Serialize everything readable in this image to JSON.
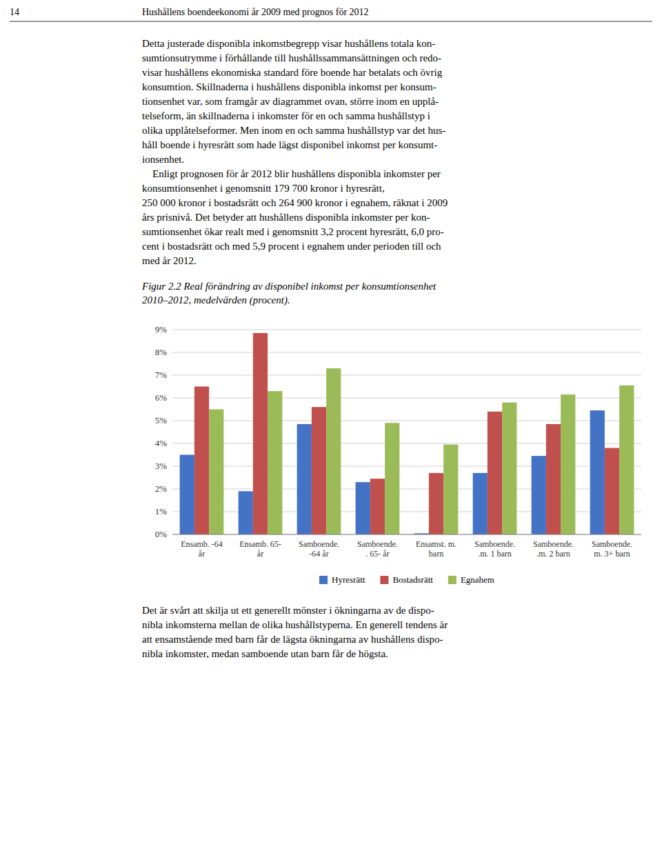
{
  "page_number": "14",
  "header_text": "Hushållens boendeekonomi år 2009 med prognos för 2012",
  "paragraphs": [
    "Detta justerade disponibla inkomstbegrepp visar hushållens totala kon-\nsumtionsutrymme i förhållande till hushållssammansättningen och redo-\nvisar hushållens ekonomiska standard före boende har betalats och övrig\nkonsumtion. Skillnaderna i hushållens disponibla inkomst per konsum-\ntionsenhet var, som framgår av diagrammet ovan, större inom en upplå-\ntelseform, än skillnaderna i inkomster för en och samma hushållstyp i\nolika upplåtelseformer. Men inom en och samma hushållstyp var det hus-\nhåll boende i hyresrätt som hade lägst disponibel inkomst per konsumt-\nionsenhet.\n    Enligt prognosen för år 2012 blir hushållens disponibla inkomster per\nkonsumtionsenhet i genomsnitt 179 700 kronor i hyresrätt,\n250 000 kronor i bostadsrätt och 264 900 kronor i egnahem, räknat i 2009\nårs prisnivå. Det betyder att hushållens disponibla inkomster per kon-\nsumtionsenhet ökar realt med i genomsnitt 3,2 procent hyresrätt, 6,0 pro-\ncent i bostadsrätt och med 5,9 procent i egnahem under perioden till och\nmed år 2012.",
    "Det är svårt att skilja ut ett generellt mönster i ökningarna av de dispo-\nnibla inkomsterna mellan de olika hushållstyperna. En generell tendens är\natt ensamstående med barn får de lägsta ökningarna av hushållens dispo-\nnibla inkomster, medan samboende utan barn får de högsta."
  ],
  "chart_data": {
    "type": "bar",
    "title": "Figur 2.2 Real förändring av disponibel inkomst per konsumtionsenhet\n2010–2012, medelvärden (procent).",
    "categories": [
      "Ensamb. -64\når",
      "Ensamb. 65-\når",
      "Samboende.\n-64 år",
      "Samboende.\n. 65- år",
      "Ensamst. m.\nbarn",
      "Samboende.\n.m. 1 barn",
      "Samboende.\n.m. 2 barn",
      "Samboende.\nm. 3+ barn"
    ],
    "series": [
      {
        "name": "Hyresrätt",
        "color": "#4472C4",
        "values": [
          3.5,
          1.9,
          4.85,
          2.3,
          0.05,
          2.7,
          3.45,
          5.45
        ]
      },
      {
        "name": "Bostadsrätt",
        "color": "#C0504D",
        "values": [
          6.5,
          8.85,
          5.6,
          2.45,
          2.7,
          5.4,
          4.85,
          3.8
        ]
      },
      {
        "name": "Egnahem",
        "color": "#9BBB59",
        "values": [
          5.5,
          6.3,
          7.3,
          4.9,
          3.95,
          5.8,
          6.15,
          6.55
        ]
      }
    ],
    "ylim": [
      0,
      9
    ],
    "yticks": [
      {
        "value": 0,
        "label": "0%"
      },
      {
        "value": 1,
        "label": "1%"
      },
      {
        "value": 2,
        "label": "2%"
      },
      {
        "value": 3,
        "label": "3%"
      },
      {
        "value": 4,
        "label": "4%"
      },
      {
        "value": 5,
        "label": "5%"
      },
      {
        "value": 6,
        "label": "6%"
      },
      {
        "value": 7,
        "label": "7%"
      },
      {
        "value": 8,
        "label": "8%"
      },
      {
        "value": 9,
        "label": "9%"
      }
    ],
    "grid": true,
    "legend": "bottom"
  }
}
